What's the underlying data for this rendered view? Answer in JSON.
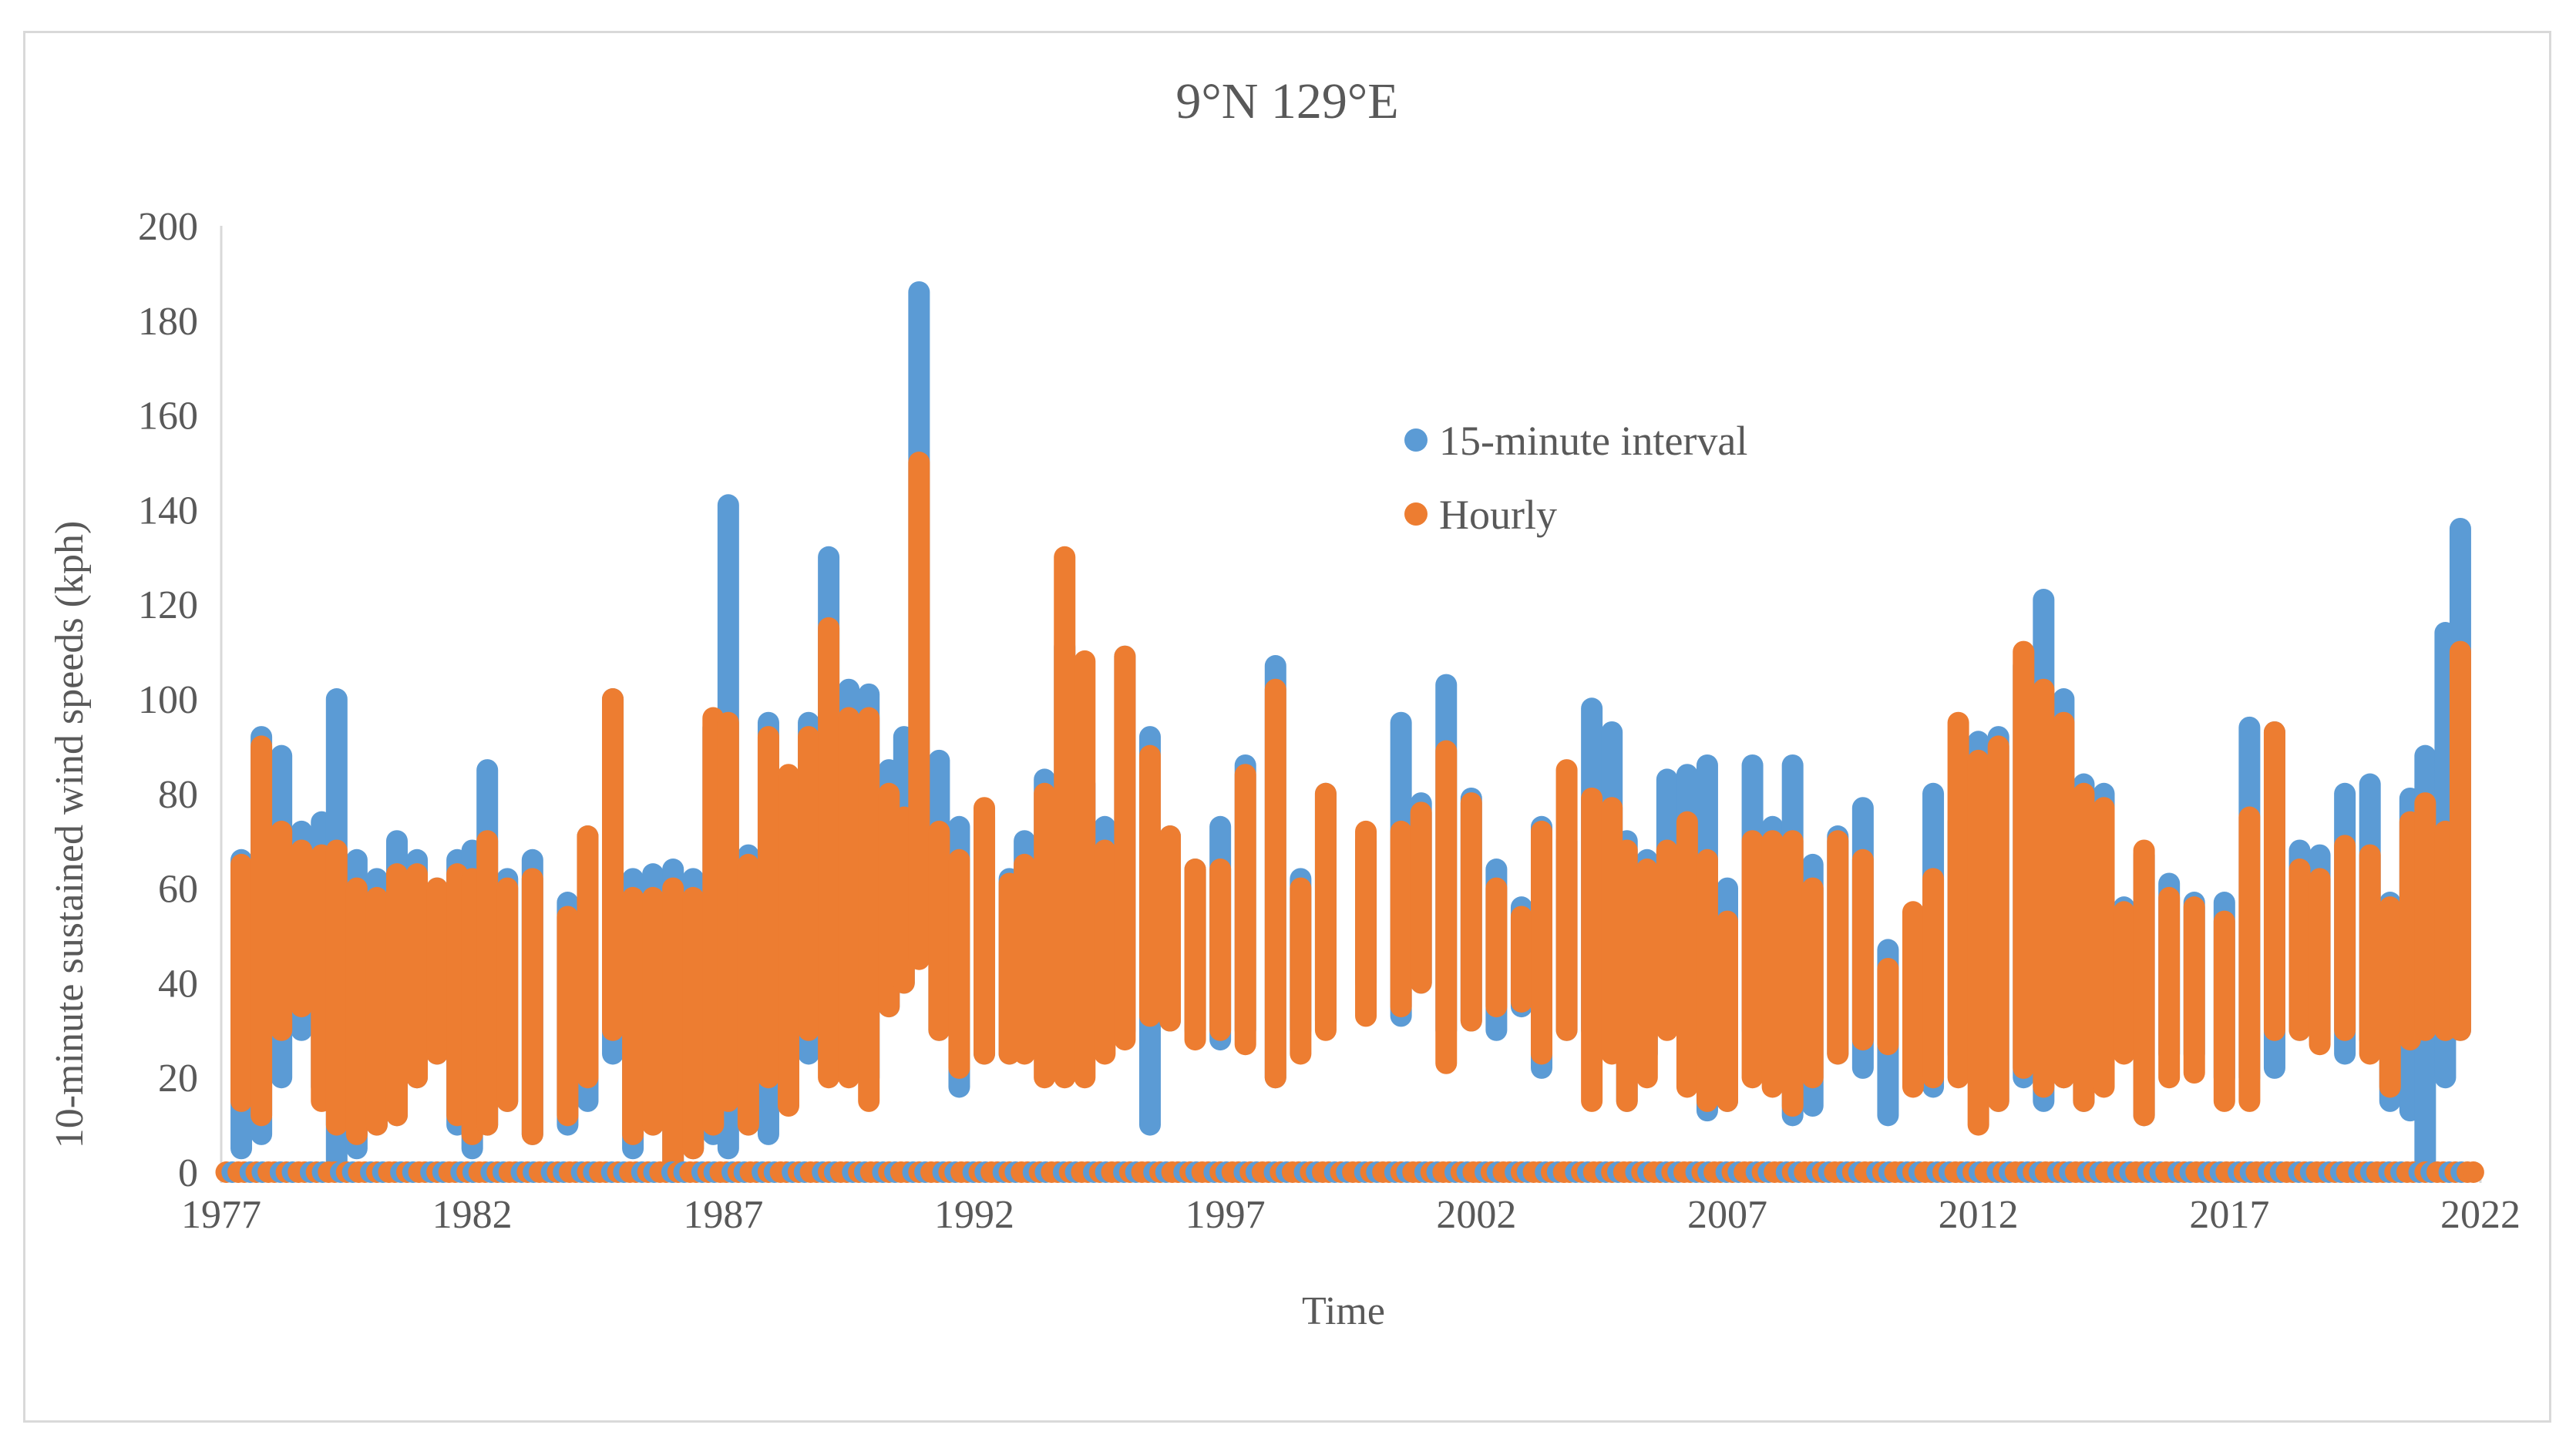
{
  "chart_data": {
    "type": "scatter",
    "title": "9°N 129°E",
    "xlabel": "Time",
    "ylabel": "10-minute sustained wind speeds (kph)",
    "xlim": [
      1977,
      2022
    ],
    "ylim": [
      0,
      200
    ],
    "x_ticks": [
      1977,
      1982,
      1987,
      1992,
      1997,
      2002,
      2007,
      2012,
      2017,
      2022
    ],
    "y_ticks": [
      0,
      20,
      40,
      60,
      80,
      100,
      120,
      140,
      160,
      180,
      200
    ],
    "legend_position": "upper-center",
    "series": [
      {
        "name": "15-minute interval",
        "color": "#5b9bd5",
        "clusters": [
          [
            1977.4,
            5,
            66
          ],
          [
            1977.8,
            8,
            92
          ],
          [
            1978.2,
            20,
            88
          ],
          [
            1978.6,
            30,
            72
          ],
          [
            1979.0,
            18,
            74
          ],
          [
            1979.3,
            2,
            100
          ],
          [
            1979.7,
            5,
            66
          ],
          [
            1980.1,
            10,
            62
          ],
          [
            1980.5,
            12,
            70
          ],
          [
            1980.9,
            20,
            66
          ],
          [
            1981.3,
            25,
            60
          ],
          [
            1981.7,
            10,
            66
          ],
          [
            1982.0,
            5,
            68
          ],
          [
            1982.3,
            10,
            85
          ],
          [
            1982.7,
            15,
            62
          ],
          [
            1983.2,
            8,
            66
          ],
          [
            1983.9,
            10,
            57
          ],
          [
            1984.3,
            15,
            71
          ],
          [
            1984.8,
            25,
            100
          ],
          [
            1985.2,
            5,
            62
          ],
          [
            1985.6,
            10,
            63
          ],
          [
            1986.0,
            0,
            64
          ],
          [
            1986.4,
            5,
            62
          ],
          [
            1986.8,
            8,
            94
          ],
          [
            1987.1,
            5,
            141
          ],
          [
            1987.5,
            10,
            67
          ],
          [
            1987.9,
            8,
            95
          ],
          [
            1988.3,
            30,
            76
          ],
          [
            1988.7,
            25,
            95
          ],
          [
            1989.1,
            30,
            130
          ],
          [
            1989.5,
            25,
            102
          ],
          [
            1989.9,
            20,
            101
          ],
          [
            1990.3,
            35,
            85
          ],
          [
            1990.6,
            40,
            92
          ],
          [
            1990.9,
            55,
            186
          ],
          [
            1991.3,
            30,
            87
          ],
          [
            1991.7,
            18,
            73
          ],
          [
            1992.2,
            25,
            75
          ],
          [
            1992.7,
            25,
            62
          ],
          [
            1993.0,
            30,
            70
          ],
          [
            1993.4,
            30,
            83
          ],
          [
            1993.8,
            28,
            111
          ],
          [
            1994.2,
            25,
            82
          ],
          [
            1994.6,
            30,
            73
          ],
          [
            1995.0,
            30,
            109
          ],
          [
            1995.5,
            10,
            92
          ],
          [
            1995.9,
            32,
            71
          ],
          [
            1996.4,
            30,
            64
          ],
          [
            1996.9,
            28,
            73
          ],
          [
            1997.4,
            30,
            86
          ],
          [
            1998.0,
            20,
            107
          ],
          [
            1998.5,
            30,
            62
          ],
          [
            1999.0,
            32,
            80
          ],
          [
            1999.8,
            40,
            70
          ],
          [
            2000.5,
            33,
            95
          ],
          [
            2000.9,
            40,
            78
          ],
          [
            2001.4,
            30,
            103
          ],
          [
            2001.9,
            32,
            79
          ],
          [
            2002.4,
            30,
            64
          ],
          [
            2002.9,
            35,
            56
          ],
          [
            2003.3,
            22,
            73
          ],
          [
            2003.8,
            30,
            70
          ],
          [
            2004.3,
            30,
            98
          ],
          [
            2004.7,
            35,
            93
          ],
          [
            2005.0,
            15,
            70
          ],
          [
            2005.4,
            25,
            66
          ],
          [
            2005.8,
            35,
            83
          ],
          [
            2006.2,
            30,
            84
          ],
          [
            2006.6,
            13,
            86
          ],
          [
            2007.0,
            15,
            60
          ],
          [
            2007.5,
            30,
            86
          ],
          [
            2007.9,
            20,
            73
          ],
          [
            2008.3,
            12,
            86
          ],
          [
            2008.7,
            14,
            65
          ],
          [
            2009.2,
            25,
            71
          ],
          [
            2009.7,
            22,
            77
          ],
          [
            2010.2,
            12,
            47
          ],
          [
            2010.7,
            20,
            50
          ],
          [
            2011.1,
            18,
            80
          ],
          [
            2011.6,
            25,
            74
          ],
          [
            2012.0,
            20,
            91
          ],
          [
            2012.4,
            15,
            92
          ],
          [
            2012.9,
            20,
            107
          ],
          [
            2013.3,
            15,
            121
          ],
          [
            2013.7,
            20,
            100
          ],
          [
            2014.1,
            15,
            82
          ],
          [
            2014.5,
            20,
            80
          ],
          [
            2014.9,
            28,
            56
          ],
          [
            2015.3,
            12,
            67
          ],
          [
            2015.8,
            25,
            61
          ],
          [
            2016.3,
            25,
            57
          ],
          [
            2016.9,
            20,
            57
          ],
          [
            2017.4,
            20,
            94
          ],
          [
            2017.9,
            22,
            93
          ],
          [
            2018.4,
            30,
            68
          ],
          [
            2018.8,
            28,
            67
          ],
          [
            2019.3,
            25,
            80
          ],
          [
            2019.8,
            28,
            82
          ],
          [
            2020.2,
            15,
            57
          ],
          [
            2020.6,
            13,
            79
          ],
          [
            2020.9,
            2,
            88
          ],
          [
            2021.3,
            20,
            114
          ],
          [
            2021.6,
            30,
            136
          ]
        ]
      },
      {
        "name": "Hourly",
        "color": "#ed7d31",
        "clusters": [
          [
            1977.4,
            15,
            65
          ],
          [
            1977.8,
            12,
            90
          ],
          [
            1978.2,
            30,
            72
          ],
          [
            1978.6,
            35,
            68
          ],
          [
            1979.0,
            15,
            67
          ],
          [
            1979.3,
            10,
            68
          ],
          [
            1979.7,
            8,
            60
          ],
          [
            1980.1,
            10,
            58
          ],
          [
            1980.5,
            12,
            63
          ],
          [
            1980.9,
            20,
            63
          ],
          [
            1981.3,
            25,
            60
          ],
          [
            1981.7,
            12,
            63
          ],
          [
            1982.0,
            8,
            62
          ],
          [
            1982.3,
            10,
            70
          ],
          [
            1982.7,
            15,
            60
          ],
          [
            1983.2,
            8,
            62
          ],
          [
            1983.9,
            12,
            54
          ],
          [
            1984.3,
            20,
            71
          ],
          [
            1984.8,
            30,
            100
          ],
          [
            1985.2,
            8,
            58
          ],
          [
            1985.6,
            10,
            58
          ],
          [
            1986.0,
            2,
            60
          ],
          [
            1986.4,
            5,
            58
          ],
          [
            1986.8,
            10,
            96
          ],
          [
            1987.1,
            15,
            95
          ],
          [
            1987.5,
            10,
            65
          ],
          [
            1987.9,
            20,
            92
          ],
          [
            1988.3,
            14,
            84
          ],
          [
            1988.7,
            30,
            92
          ],
          [
            1989.1,
            20,
            115
          ],
          [
            1989.5,
            20,
            96
          ],
          [
            1989.9,
            15,
            96
          ],
          [
            1990.3,
            35,
            80
          ],
          [
            1990.6,
            40,
            75
          ],
          [
            1990.9,
            45,
            150
          ],
          [
            1991.3,
            30,
            72
          ],
          [
            1991.7,
            22,
            66
          ],
          [
            1992.2,
            25,
            77
          ],
          [
            1992.7,
            25,
            61
          ],
          [
            1993.0,
            25,
            65
          ],
          [
            1993.4,
            20,
            80
          ],
          [
            1993.8,
            20,
            130
          ],
          [
            1994.2,
            20,
            108
          ],
          [
            1994.6,
            25,
            68
          ],
          [
            1995.0,
            28,
            109
          ],
          [
            1995.5,
            33,
            88
          ],
          [
            1995.9,
            32,
            71
          ],
          [
            1996.4,
            28,
            64
          ],
          [
            1996.9,
            30,
            64
          ],
          [
            1997.4,
            27,
            84
          ],
          [
            1998.0,
            20,
            102
          ],
          [
            1998.5,
            25,
            60
          ],
          [
            1999.0,
            30,
            80
          ],
          [
            1999.8,
            33,
            72
          ],
          [
            2000.5,
            35,
            72
          ],
          [
            2000.9,
            40,
            76
          ],
          [
            2001.4,
            23,
            89
          ],
          [
            2001.9,
            32,
            78
          ],
          [
            2002.4,
            35,
            60
          ],
          [
            2002.9,
            36,
            54
          ],
          [
            2003.3,
            25,
            72
          ],
          [
            2003.8,
            30,
            85
          ],
          [
            2004.3,
            15,
            79
          ],
          [
            2004.7,
            25,
            77
          ],
          [
            2005.0,
            15,
            68
          ],
          [
            2005.4,
            20,
            64
          ],
          [
            2005.8,
            30,
            68
          ],
          [
            2006.2,
            18,
            74
          ],
          [
            2006.6,
            15,
            66
          ],
          [
            2007.0,
            15,
            53
          ],
          [
            2007.5,
            20,
            70
          ],
          [
            2007.9,
            18,
            70
          ],
          [
            2008.3,
            14,
            70
          ],
          [
            2008.7,
            20,
            60
          ],
          [
            2009.2,
            25,
            70
          ],
          [
            2009.7,
            28,
            66
          ],
          [
            2010.2,
            27,
            43
          ],
          [
            2010.7,
            18,
            55
          ],
          [
            2011.1,
            20,
            62
          ],
          [
            2011.6,
            20,
            95
          ],
          [
            2012.0,
            10,
            87
          ],
          [
            2012.4,
            15,
            90
          ],
          [
            2012.9,
            22,
            110
          ],
          [
            2013.3,
            18,
            102
          ],
          [
            2013.7,
            20,
            95
          ],
          [
            2014.1,
            15,
            80
          ],
          [
            2014.5,
            18,
            77
          ],
          [
            2014.9,
            25,
            55
          ],
          [
            2015.3,
            12,
            68
          ],
          [
            2015.8,
            20,
            58
          ],
          [
            2016.3,
            21,
            56
          ],
          [
            2016.9,
            15,
            53
          ],
          [
            2017.4,
            15,
            75
          ],
          [
            2017.9,
            30,
            93
          ],
          [
            2018.4,
            30,
            64
          ],
          [
            2018.8,
            27,
            62
          ],
          [
            2019.3,
            30,
            69
          ],
          [
            2019.8,
            25,
            67
          ],
          [
            2020.2,
            18,
            56
          ],
          [
            2020.6,
            28,
            74
          ],
          [
            2020.9,
            30,
            78
          ],
          [
            2021.3,
            30,
            72
          ],
          [
            2021.6,
            30,
            110
          ]
        ]
      }
    ]
  }
}
